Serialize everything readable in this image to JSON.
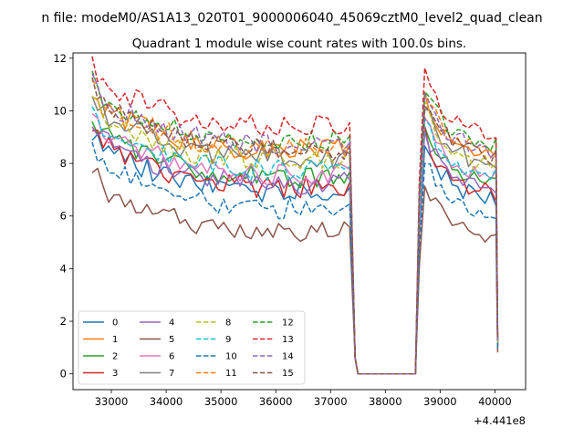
{
  "figure": {
    "suptitle": "n file: modeM0/AS1A13_020T01_9000006040_45069cztM0_level2_quad_clean",
    "offset_text": "+4.441e8"
  },
  "chart_data": {
    "type": "line",
    "title": "Quadrant 1 module wise count rates with 100.0s bins.",
    "xlabel": "",
    "ylabel": "",
    "x_offset": 444100000,
    "xlim": [
      32300,
      40560
    ],
    "ylim": [
      -0.6,
      12.2
    ],
    "xticks": [
      33000,
      34000,
      35000,
      36000,
      37000,
      38000,
      39000,
      40000
    ],
    "yticks": [
      0,
      2,
      4,
      6,
      8,
      10,
      12
    ],
    "grid": false,
    "legend": {
      "placement": "lower-left",
      "columns": 4
    },
    "series": [
      {
        "name": "0",
        "color": "#1f77b4",
        "dash": "solid",
        "base": 6.6
      },
      {
        "name": "1",
        "color": "#ff7f0e",
        "dash": "solid",
        "base": 8.2
      },
      {
        "name": "2",
        "color": "#2ca02c",
        "dash": "solid",
        "base": 7.2
      },
      {
        "name": "3",
        "color": "#d62728",
        "dash": "solid",
        "base": 6.8
      },
      {
        "name": "4",
        "color": "#9467bd",
        "dash": "solid",
        "base": 6.9
      },
      {
        "name": "5",
        "color": "#8c564b",
        "dash": "solid",
        "base": 5.1
      },
      {
        "name": "6",
        "color": "#e377c2",
        "dash": "solid",
        "base": 7.3
      },
      {
        "name": "7",
        "color": "#7f7f7f",
        "dash": "solid",
        "base": 7.9
      },
      {
        "name": "8",
        "color": "#bcbd22",
        "dash": "dashed",
        "base": 7.8
      },
      {
        "name": "9",
        "color": "#17becf",
        "dash": "dashed",
        "base": 7.4
      },
      {
        "name": "10",
        "color": "#1f77b4",
        "dash": "dashed",
        "base": 6.0
      },
      {
        "name": "11",
        "color": "#ff7f0e",
        "dash": "dashed",
        "base": 8.3
      },
      {
        "name": "12",
        "color": "#2ca02c",
        "dash": "dashed",
        "base": 8.6
      },
      {
        "name": "13",
        "color": "#d62728",
        "dash": "dashed",
        "base": 9.1
      },
      {
        "name": "14",
        "color": "#9467bd",
        "dash": "dashed",
        "base": 8.4
      },
      {
        "name": "15",
        "color": "#8c564b",
        "dash": "dashed",
        "base": 8.2
      }
    ],
    "profile": {
      "segment1": {
        "x_start": 32650,
        "x_end": 37350,
        "step": 100,
        "start_excess": 2.2
      },
      "gap": {
        "x": [
          37450,
          37500,
          38550
        ],
        "values": [
          0.6,
          0.0,
          0.0
        ]
      },
      "segment2": {
        "x_start": 38620,
        "x_end": 40020,
        "step": 100,
        "peak_excess": 2.3
      },
      "tail": {
        "x": 40050,
        "fraction": 0.15
      }
    }
  }
}
